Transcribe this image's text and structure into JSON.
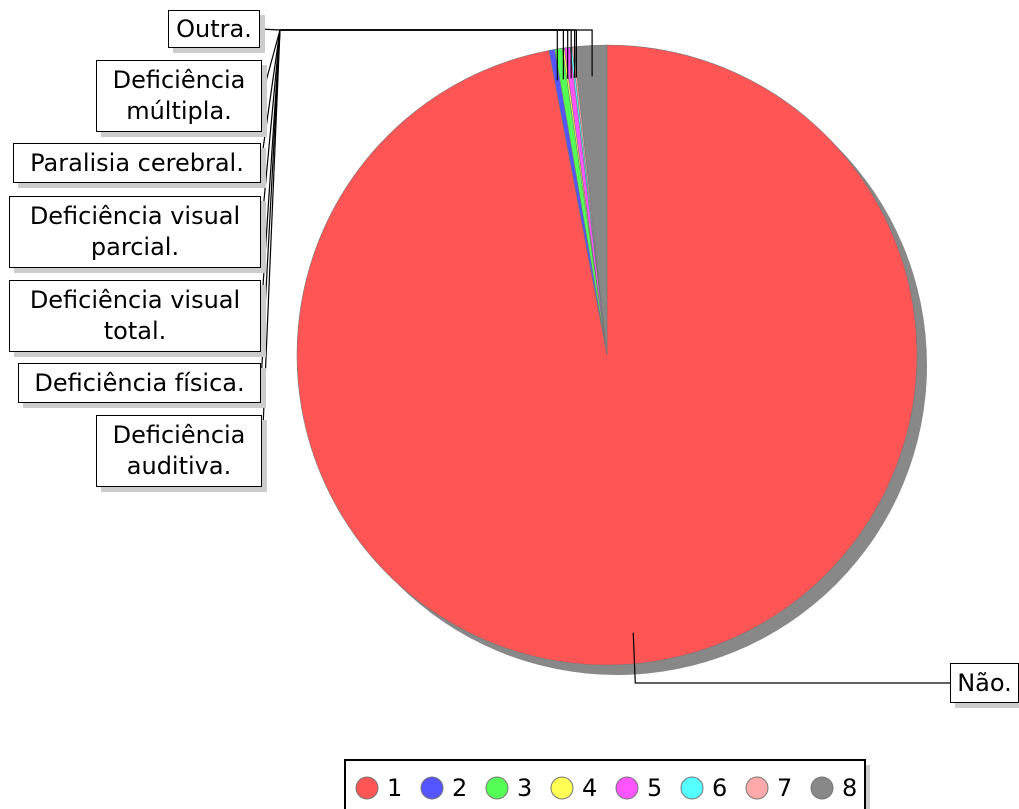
{
  "chart_data": {
    "type": "pie",
    "categories": [
      "Não.",
      "Deficiência auditiva.",
      "Deficiência física.",
      "Deficiência visual total.",
      "Deficiência visual parcial.",
      "Paralisia cerebral.",
      "Deficiência múltipla.",
      "Outra."
    ],
    "values": [
      97,
      0.3,
      0.4,
      0.1,
      0.3,
      0.1,
      0.1,
      1.7
    ],
    "colors": [
      "#ff5555",
      "#5555ff",
      "#55ff55",
      "#ffff55",
      "#ff55ff",
      "#55ffff",
      "#ffaaaa",
      "#888888"
    ],
    "legend_labels": [
      "1",
      "2",
      "3",
      "4",
      "5",
      "6",
      "7",
      "8"
    ]
  }
}
